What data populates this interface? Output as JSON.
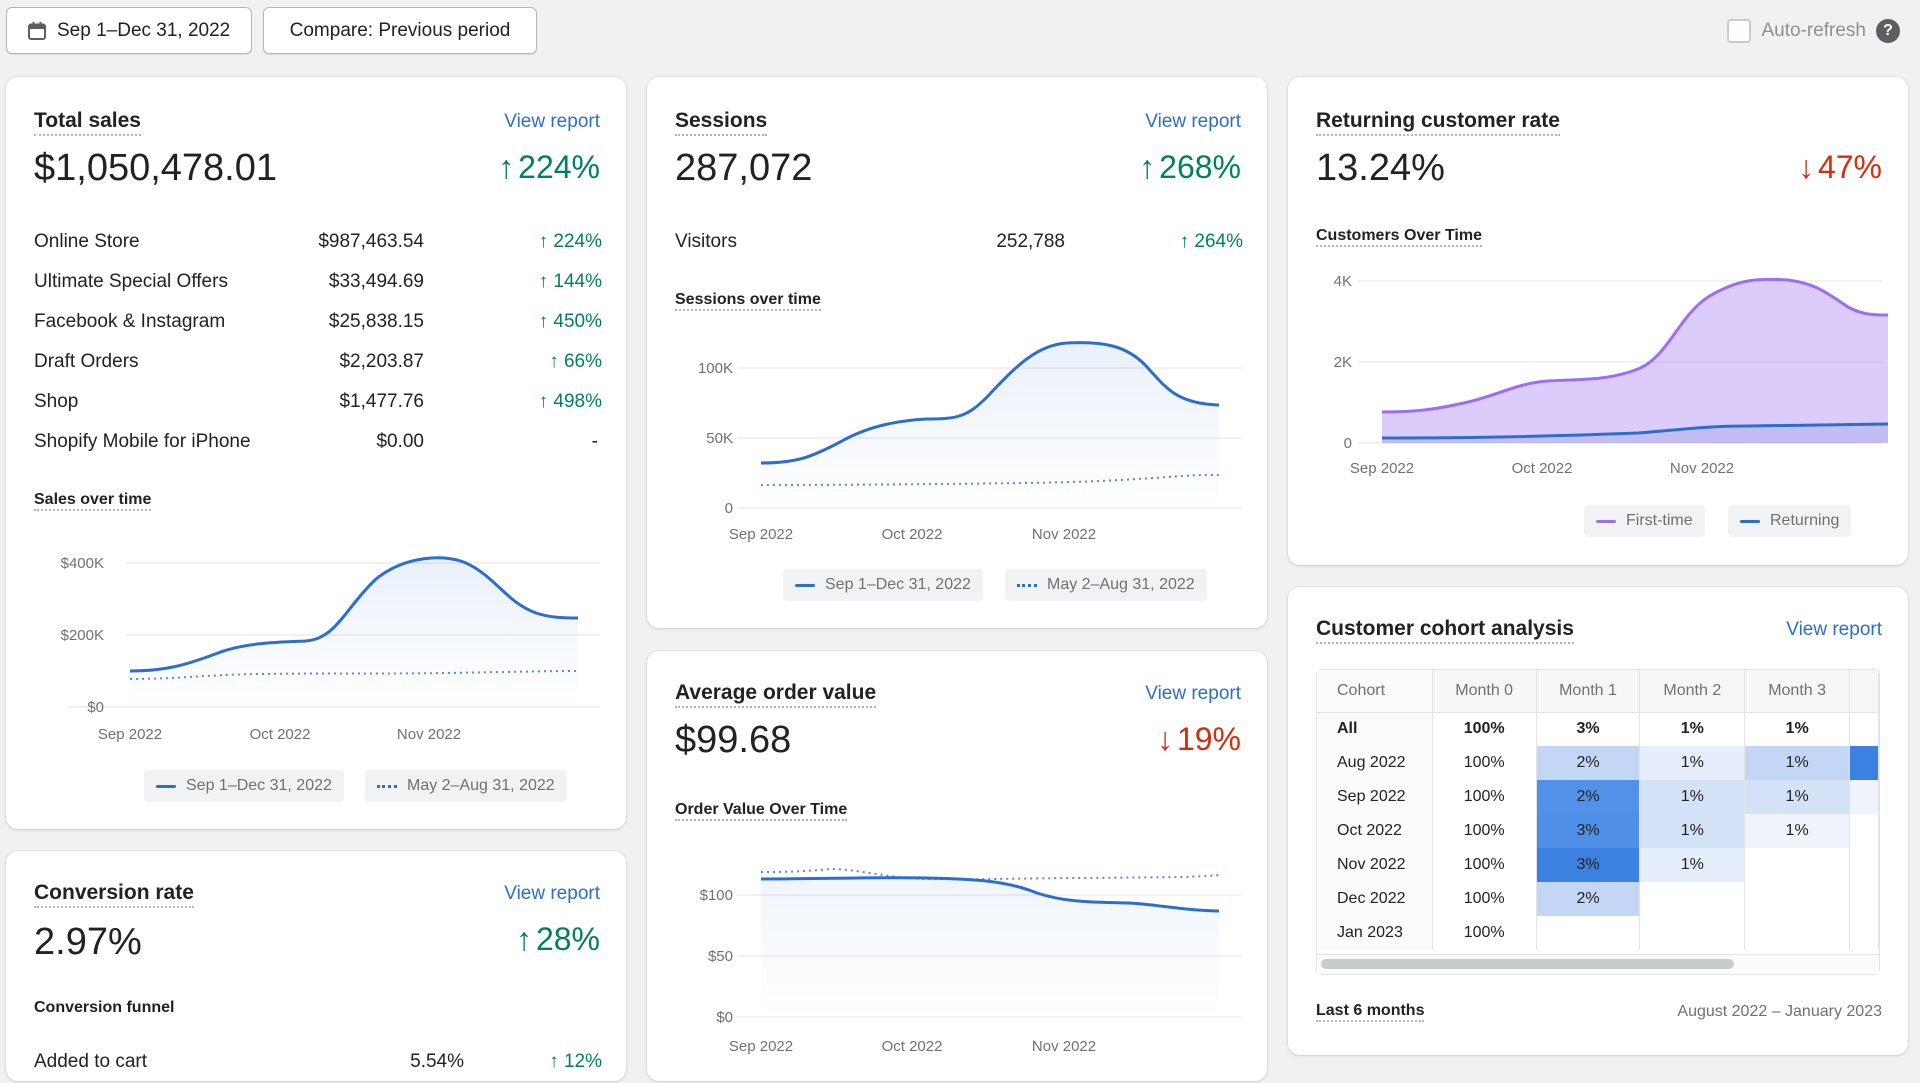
{
  "toolbar": {
    "date_range": "Sep 1–Dec 31, 2022",
    "compare": "Compare: Previous period",
    "auto_refresh": "Auto-refresh",
    "help_glyph": "?"
  },
  "colors": {
    "accent": "#2c6ecb",
    "positive": "#008060",
    "negative": "#d72c0d",
    "first_time": "#9b6ef3",
    "returning": "#2c6ecb"
  },
  "total_sales": {
    "title": "Total sales",
    "view_report": "View report",
    "value": "$1,050,478.01",
    "delta": "224%",
    "rows": [
      {
        "label": "Online Store",
        "value": "$987,463.54",
        "delta": "224%"
      },
      {
        "label": "Ultimate Special Offers",
        "value": "$33,494.69",
        "delta": "144%"
      },
      {
        "label": "Facebook & Instagram",
        "value": "$25,838.15",
        "delta": "450%"
      },
      {
        "label": "Draft Orders",
        "value": "$2,203.87",
        "delta": "66%"
      },
      {
        "label": "Shop",
        "value": "$1,477.76",
        "delta": "498%"
      },
      {
        "label": "Shopify Mobile for iPhone",
        "value": "$0.00",
        "delta": "-"
      }
    ],
    "chart_title": "Sales over time",
    "y_ticks": [
      "$400K",
      "$200K",
      "$0"
    ],
    "x_ticks": [
      "Sep 2022",
      "Oct 2022",
      "Nov 2022"
    ],
    "legend": [
      "Sep 1–Dec 31, 2022",
      "May 2–Aug 31, 2022"
    ]
  },
  "sessions": {
    "title": "Sessions",
    "view_report": "View report",
    "value": "287,072",
    "delta": "268%",
    "visitors_label": "Visitors",
    "visitors_value": "252,788",
    "visitors_delta": "264%",
    "chart_title": "Sessions over time",
    "y_ticks": [
      "100K",
      "50K",
      "0"
    ],
    "x_ticks": [
      "Sep 2022",
      "Oct 2022",
      "Nov 2022"
    ],
    "legend": [
      "Sep 1–Dec 31, 2022",
      "May 2–Aug 31, 2022"
    ]
  },
  "returning": {
    "title": "Returning customer rate",
    "value": "13.24%",
    "delta": "47%",
    "chart_title": "Customers Over Time",
    "y_ticks": [
      "4K",
      "2K",
      "0"
    ],
    "x_ticks": [
      "Sep 2022",
      "Oct 2022",
      "Nov 2022"
    ],
    "legend": [
      "First-time",
      "Returning"
    ]
  },
  "aov": {
    "title": "Average order value",
    "view_report": "View report",
    "value": "$99.68",
    "delta": "19%",
    "chart_title": "Order Value Over Time",
    "y_ticks": [
      "$100",
      "$50",
      "$0"
    ],
    "x_ticks": [
      "Sep 2022",
      "Oct 2022",
      "Nov 2022"
    ]
  },
  "conversion": {
    "title": "Conversion rate",
    "view_report": "View report",
    "value": "2.97%",
    "delta": "28%",
    "funnel_title": "Conversion funnel",
    "first_row": {
      "label": "Added to cart",
      "value": "5.54%",
      "delta": "12%"
    }
  },
  "cohort": {
    "title": "Customer cohort analysis",
    "view_report": "View report",
    "headers": [
      "Cohort",
      "Month 0",
      "Month 1",
      "Month 2",
      "Month 3"
    ],
    "rows": [
      {
        "label": "All",
        "cells": [
          "100%",
          "3%",
          "1%",
          "1%"
        ]
      },
      {
        "label": "Aug 2022",
        "cells": [
          "100%",
          "2%",
          "1%",
          "1%"
        ]
      },
      {
        "label": "Sep 2022",
        "cells": [
          "100%",
          "2%",
          "1%",
          "1%"
        ]
      },
      {
        "label": "Oct 2022",
        "cells": [
          "100%",
          "3%",
          "1%",
          "1%"
        ]
      },
      {
        "label": "Nov 2022",
        "cells": [
          "100%",
          "3%",
          "1%",
          ""
        ]
      },
      {
        "label": "Dec 2022",
        "cells": [
          "100%",
          "2%",
          "",
          ""
        ]
      },
      {
        "label": "Jan 2023",
        "cells": [
          "100%",
          "",
          "",
          ""
        ]
      }
    ],
    "footer_left": "Last 6 months",
    "footer_right": "August 2022 – January 2023"
  }
}
